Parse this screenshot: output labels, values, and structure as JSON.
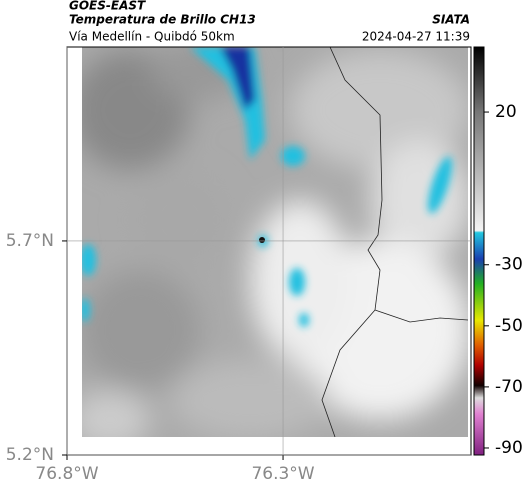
{
  "header": {
    "source": "GOES-EAST",
    "title": "Temperatura de Brillo CH13",
    "agency": "SIATA",
    "subtitle": "Vía Medellín - Quibdó 50km",
    "timestamp": "2024-04-27 11:39"
  },
  "map": {
    "xlim": [
      -76.8,
      -75.865
    ],
    "ylim": [
      5.2,
      6.153
    ],
    "xticks": [
      {
        "value": -76.8,
        "label": "76.8°W"
      },
      {
        "value": -76.3,
        "label": "76.3°W"
      }
    ],
    "yticks": [
      {
        "value": 5.2,
        "label": "5.2°N"
      },
      {
        "value": 5.7,
        "label": "5.7°N"
      }
    ],
    "grid": true
  },
  "colorbar": {
    "lim": [
      -92.3,
      41.3
    ],
    "ticks": [
      20,
      -30,
      -50,
      -70,
      -90
    ]
  }
}
